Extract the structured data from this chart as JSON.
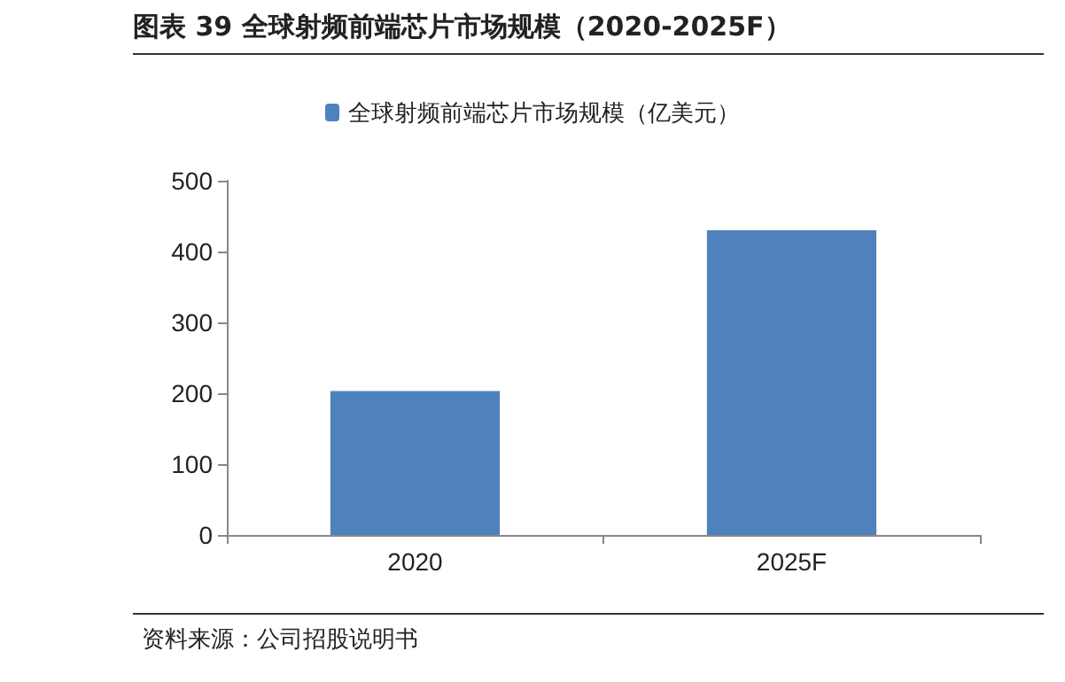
{
  "chart_data": {
    "type": "bar",
    "title": "图表 39  全球射频前端芯片市场规模（2020-2025F）",
    "categories": [
      "2020",
      "2025F"
    ],
    "series": [
      {
        "name": "全球射频前端芯片市场规模（亿美元）",
        "color": "#4f81bd",
        "values": [
          203,
          430
        ]
      }
    ],
    "ylim": [
      0,
      500
    ],
    "yticks": [
      0,
      100,
      200,
      300,
      400,
      500
    ],
    "grid": false,
    "legend": "top",
    "annotations": [
      "资料来源：公司招股说明书"
    ]
  }
}
